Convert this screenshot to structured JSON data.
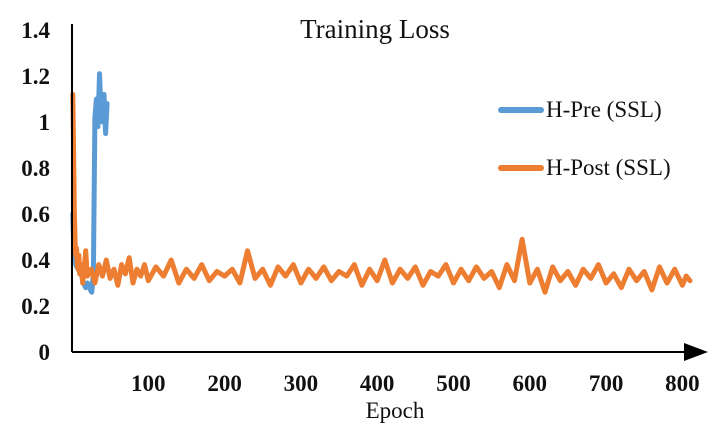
{
  "chart_data": {
    "type": "line",
    "title": "Training Loss",
    "xlabel": "Epoch",
    "ylabel": "",
    "xlim": [
      0,
      810
    ],
    "ylim": [
      0,
      1.4
    ],
    "x_ticks": [
      100,
      200,
      300,
      400,
      500,
      600,
      700,
      800
    ],
    "y_ticks": [
      0,
      0.2,
      0.4,
      0.6,
      0.8,
      1,
      1.2,
      1.4
    ],
    "y_tick_labels": [
      "0",
      "0.2",
      "0.4",
      "0.6",
      "0.8",
      "1",
      "1.2",
      "1.4"
    ],
    "grid": false,
    "legend_position": "right",
    "series": [
      {
        "name": "H-Pre (SSL)",
        "color": "#5b9bd5",
        "x": [
          1,
          2,
          3,
          5,
          8,
          12,
          15,
          18,
          20,
          22,
          24,
          26,
          28,
          30,
          32,
          34,
          36,
          38,
          40,
          42,
          44,
          46
        ],
        "y": [
          0.6,
          0.48,
          0.53,
          0.38,
          0.36,
          0.34,
          0.3,
          0.28,
          0.3,
          0.29,
          0.27,
          0.26,
          0.35,
          1.02,
          1.1,
          0.98,
          1.21,
          1.05,
          1.0,
          1.12,
          0.95,
          1.08
        ]
      },
      {
        "name": "H-Post (SSL)",
        "color": "#ed7d31",
        "x": [
          1,
          2,
          3,
          4,
          5,
          6,
          7,
          8,
          9,
          10,
          12,
          14,
          16,
          18,
          20,
          25,
          30,
          35,
          40,
          45,
          50,
          55,
          60,
          65,
          70,
          75,
          80,
          85,
          90,
          95,
          100,
          110,
          120,
          130,
          140,
          150,
          160,
          170,
          180,
          190,
          200,
          210,
          220,
          230,
          240,
          250,
          260,
          270,
          280,
          290,
          300,
          310,
          320,
          330,
          340,
          350,
          360,
          370,
          380,
          390,
          400,
          410,
          420,
          430,
          440,
          450,
          460,
          470,
          480,
          490,
          500,
          510,
          520,
          530,
          540,
          550,
          560,
          570,
          580,
          590,
          600,
          610,
          620,
          630,
          640,
          650,
          660,
          670,
          680,
          690,
          700,
          710,
          720,
          730,
          740,
          750,
          760,
          770,
          780,
          790,
          800,
          805,
          810
        ],
        "y": [
          1.12,
          0.9,
          0.62,
          0.48,
          0.42,
          0.45,
          0.38,
          0.36,
          0.42,
          0.34,
          0.38,
          0.3,
          0.36,
          0.44,
          0.33,
          0.36,
          0.3,
          0.38,
          0.33,
          0.4,
          0.32,
          0.36,
          0.29,
          0.38,
          0.34,
          0.41,
          0.3,
          0.36,
          0.33,
          0.38,
          0.31,
          0.37,
          0.33,
          0.4,
          0.3,
          0.36,
          0.32,
          0.38,
          0.31,
          0.35,
          0.33,
          0.36,
          0.3,
          0.44,
          0.32,
          0.36,
          0.29,
          0.37,
          0.33,
          0.38,
          0.3,
          0.36,
          0.32,
          0.37,
          0.31,
          0.35,
          0.33,
          0.38,
          0.29,
          0.36,
          0.31,
          0.4,
          0.3,
          0.36,
          0.32,
          0.37,
          0.29,
          0.35,
          0.33,
          0.38,
          0.3,
          0.36,
          0.31,
          0.37,
          0.32,
          0.35,
          0.28,
          0.38,
          0.31,
          0.49,
          0.3,
          0.36,
          0.26,
          0.37,
          0.31,
          0.35,
          0.29,
          0.36,
          0.32,
          0.38,
          0.3,
          0.34,
          0.28,
          0.36,
          0.31,
          0.35,
          0.27,
          0.37,
          0.3,
          0.36,
          0.29,
          0.33,
          0.31
        ]
      }
    ]
  }
}
